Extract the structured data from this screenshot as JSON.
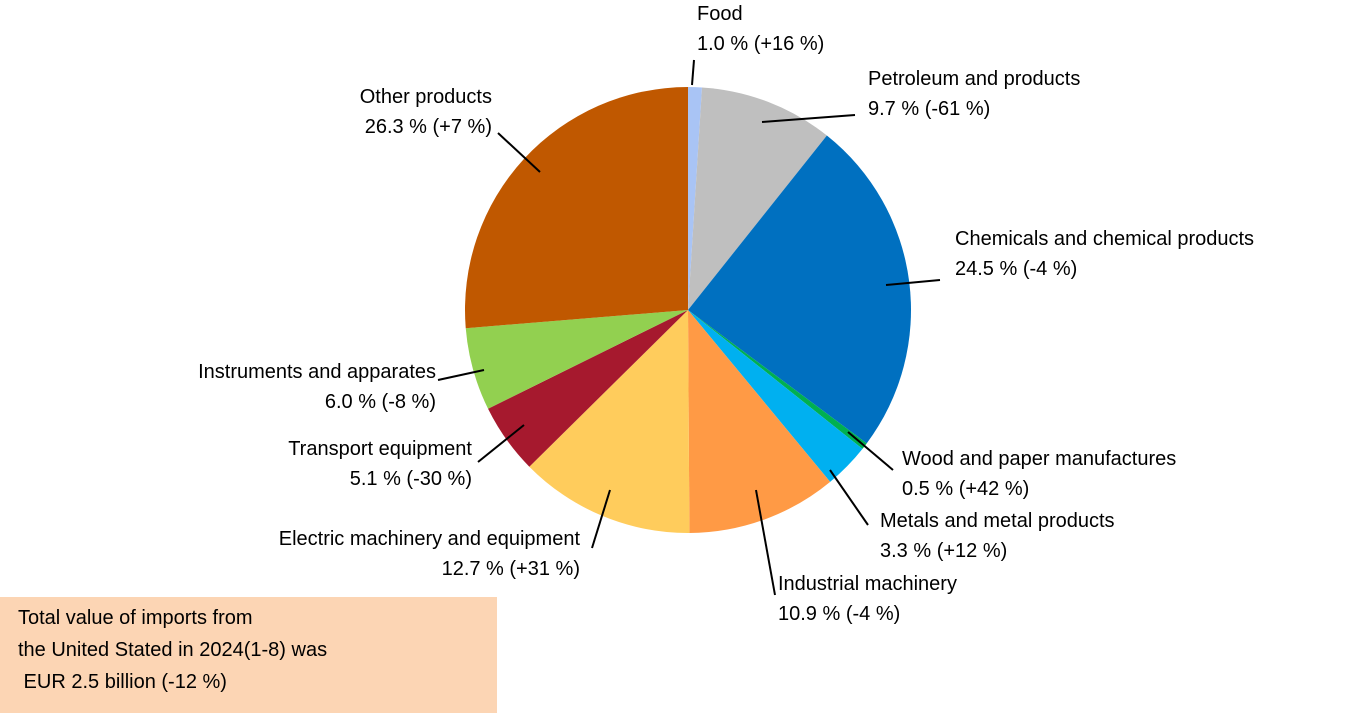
{
  "chart_data": {
    "type": "pie",
    "categories": [
      "Food",
      "Petroleum and products",
      "Chemicals and chemical products",
      "Wood and paper manufactures",
      "Metals and metal products",
      "Industrial machinery",
      "Electric machinery and equipment",
      "Transport equipment",
      "Instruments and apparates",
      "Other products"
    ],
    "values": [
      1.0,
      9.7,
      24.5,
      0.5,
      3.3,
      10.9,
      12.7,
      5.1,
      6.0,
      26.3
    ],
    "value_labels": [
      "1.0 % (+16 %)",
      "9.7 % (-61 %)",
      "24.5 % (-4 %)",
      "0.5 % (+42 %)",
      "3.3 % (+12 %)",
      "10.9 % (-4 %)",
      "12.7 % (+31 %)",
      "5.1 % (-30 %)",
      "6.0 % (-8 %)",
      "26.3 % (+7 %)"
    ],
    "colors": [
      "#a9c4f5",
      "#bfbfbf",
      "#0070c0",
      "#00b050",
      "#00b0f0",
      "#ff9a45",
      "#ffcc5c",
      "#a6192e",
      "#92d050",
      "#c05800"
    ],
    "annotation": [
      "Total value of imports from",
      "the United Stated in 2024(1-8) was",
      " EUR 2.5 billion (-12 %)"
    ]
  }
}
